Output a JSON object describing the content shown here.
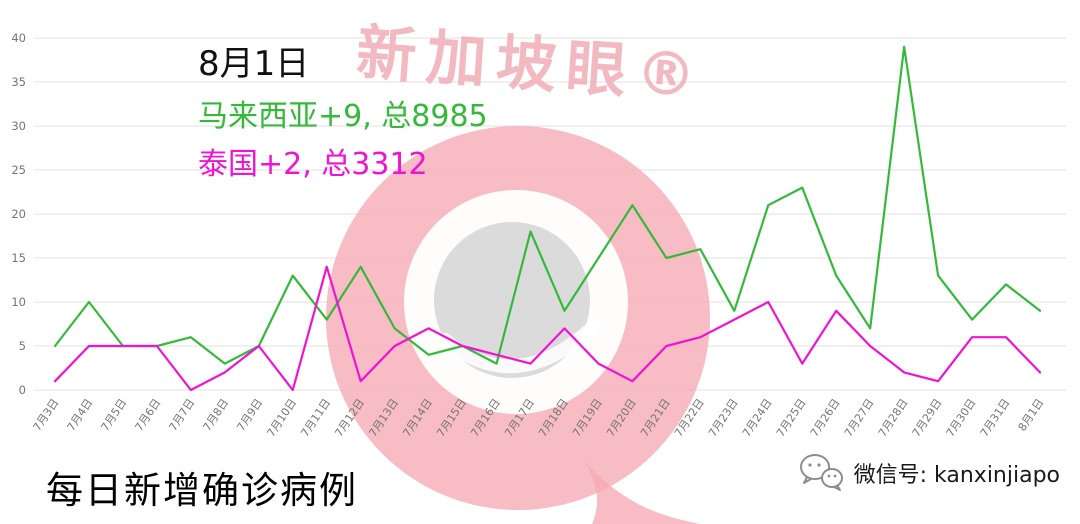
{
  "watermark": {
    "brand_text": "新加坡眼®"
  },
  "annotation": {
    "date": "8月1日",
    "malaysia": "马来西亚+9, 总8985",
    "thailand": "泰国+2, 总3312"
  },
  "footer": {
    "title": "每日新增确诊病例",
    "wechat": "微信号: kanxinjiapo"
  },
  "colors": {
    "malaysia": "#35b93a",
    "thailand": "#f013d3",
    "grid": "#e2e2e2",
    "axis_text": "#757575",
    "watermark_pink": "#f5a9b4",
    "watermark_gray": "#d9d9d9"
  },
  "chart_data": {
    "type": "line",
    "title": "每日新增确诊病例",
    "categories": [
      "7月3日",
      "7月4日",
      "7月5日",
      "7月6日",
      "7月7日",
      "7月8日",
      "7月9日",
      "7月10日",
      "7月11日",
      "7月12日",
      "7月13日",
      "7月14日",
      "7月15日",
      "7月16日",
      "7月17日",
      "7月18日",
      "7月19日",
      "7月20日",
      "7月21日",
      "7月22日",
      "7月23日",
      "7月24日",
      "7月25日",
      "7月26日",
      "7月27日",
      "7月28日",
      "7月29日",
      "7月30日",
      "7月31日",
      "8月1日"
    ],
    "series": [
      {
        "name": "马来西亚",
        "color_key": "malaysia",
        "values": [
          5,
          10,
          5,
          5,
          6,
          3,
          5,
          13,
          8,
          14,
          7,
          4,
          5,
          3,
          18,
          9,
          15,
          21,
          15,
          16,
          9,
          21,
          23,
          13,
          7,
          39,
          13,
          8,
          12,
          9
        ]
      },
      {
        "name": "泰国",
        "color_key": "thailand",
        "values": [
          1,
          5,
          5,
          5,
          0,
          2,
          5,
          0,
          14,
          1,
          5,
          7,
          5,
          4,
          3,
          7,
          3,
          1,
          5,
          6,
          8,
          10,
          3,
          9,
          5,
          2,
          1,
          6,
          6,
          2
        ]
      }
    ],
    "ylim": [
      0,
      40
    ],
    "ytick_step": 5,
    "grid": true,
    "legend": "none"
  }
}
